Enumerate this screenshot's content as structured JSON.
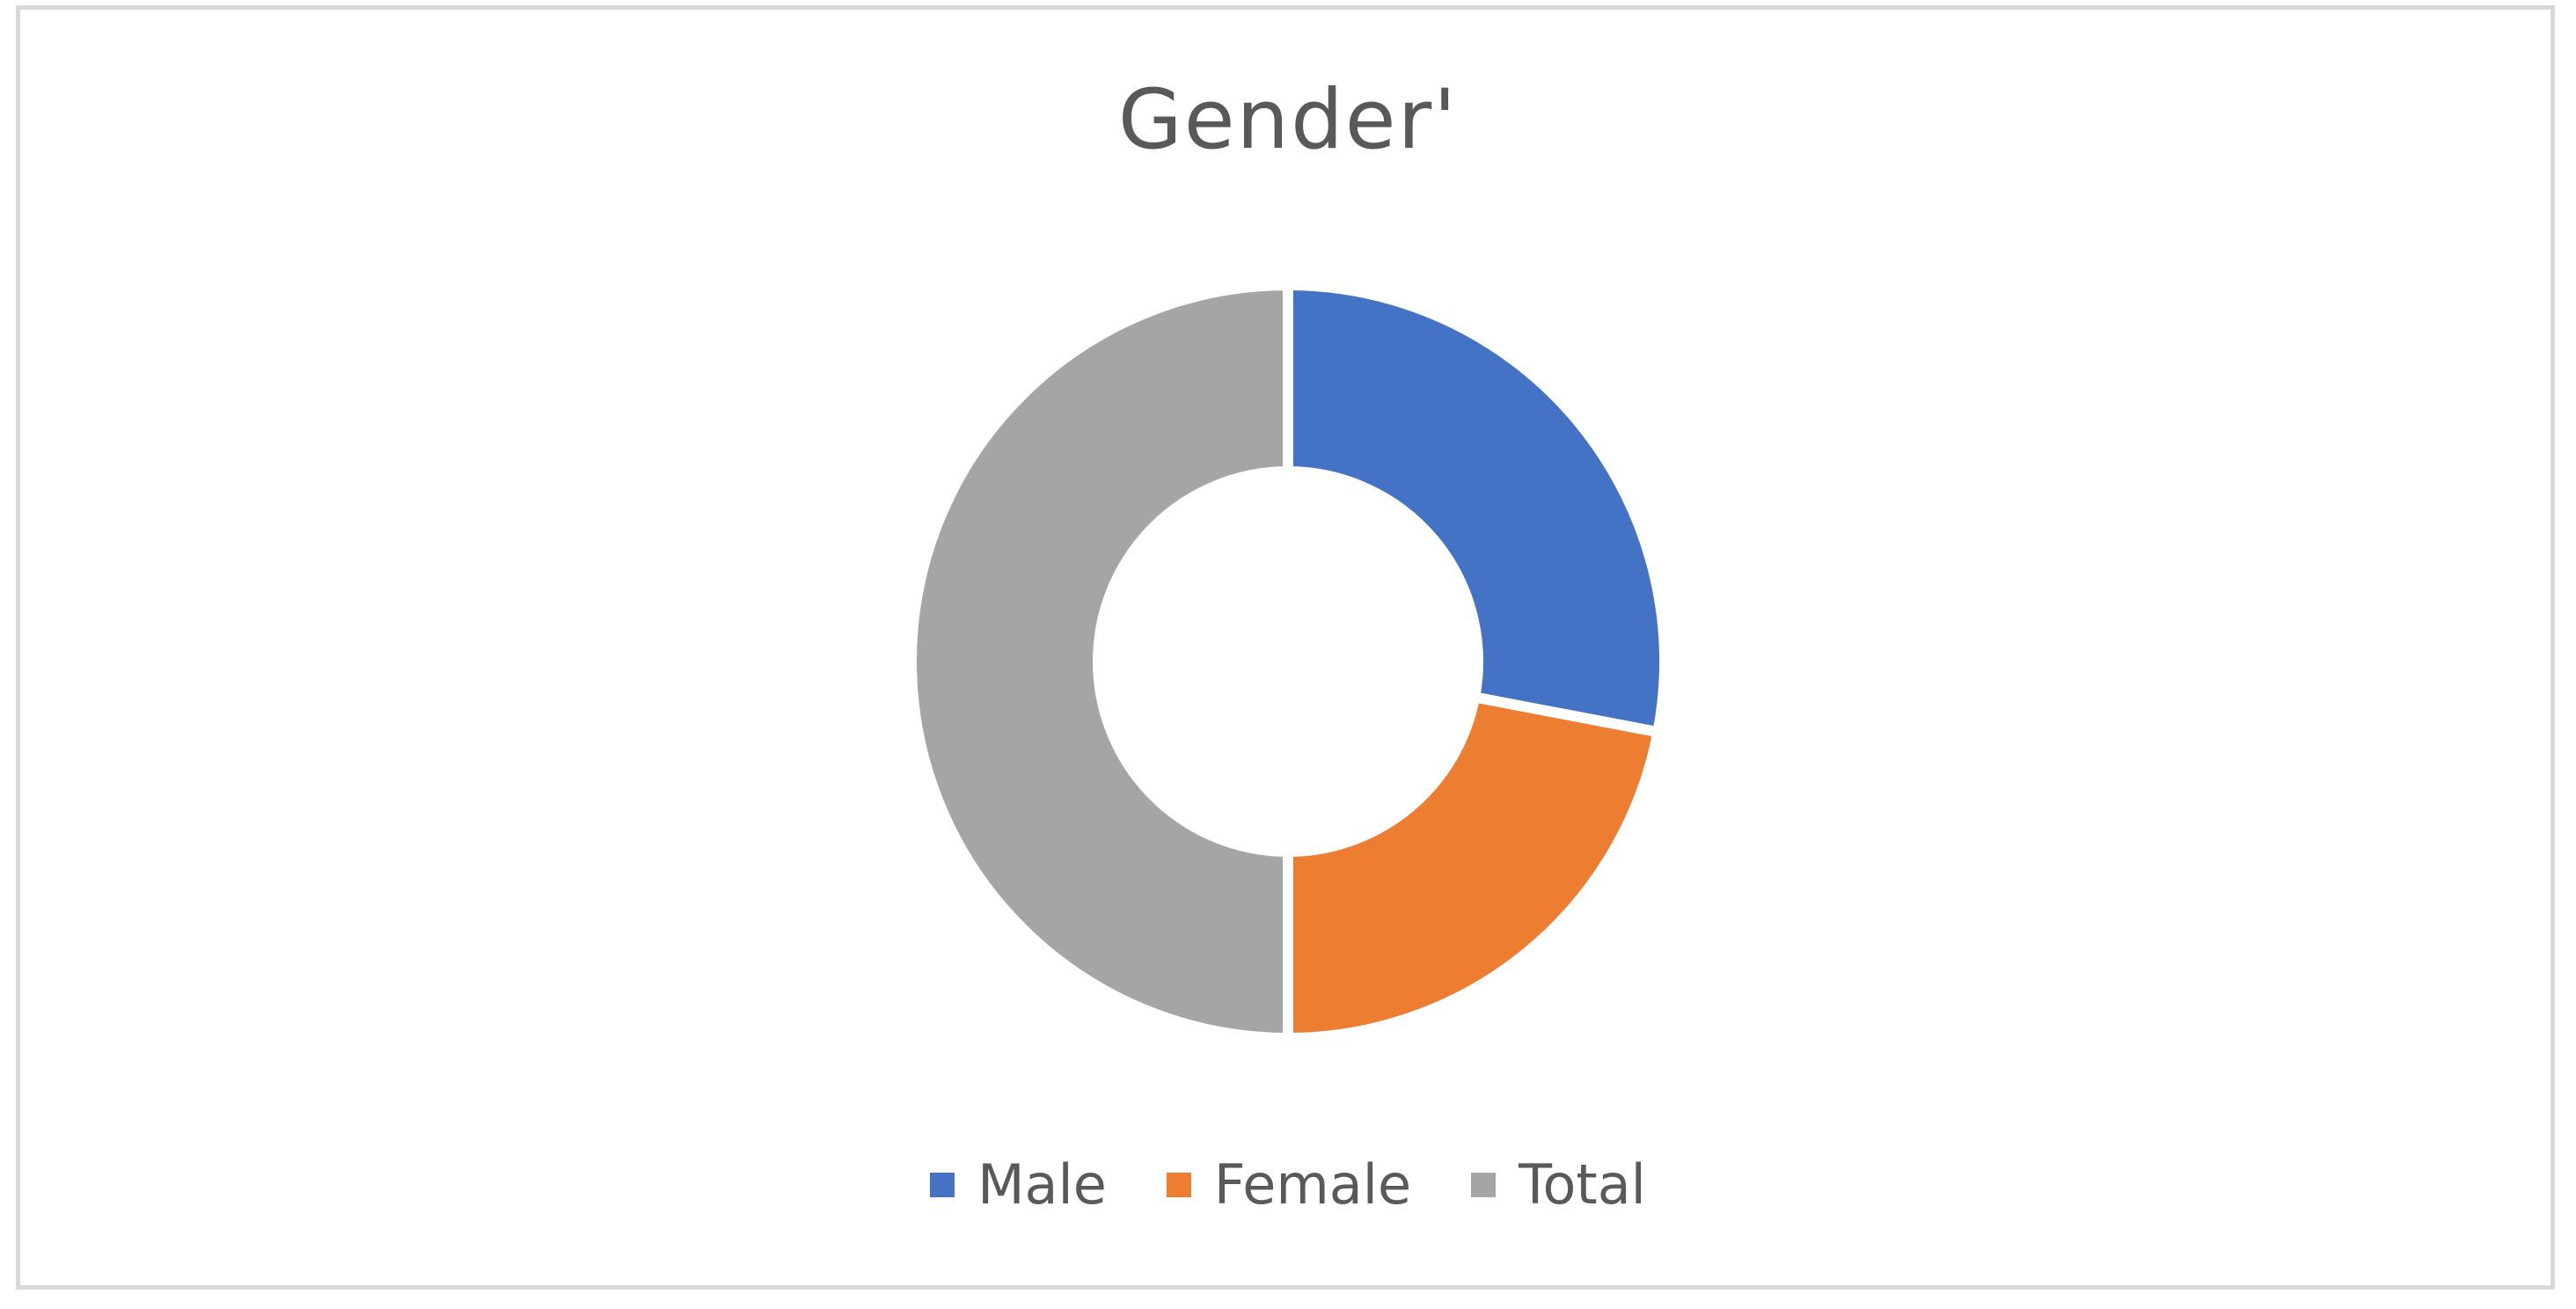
{
  "chart_data": {
    "type": "pie",
    "style": "donut",
    "title": "Gender'",
    "categories": [
      "Male",
      "Female",
      "Total"
    ],
    "values": [
      28,
      22,
      50
    ],
    "colors": [
      "#4472c4",
      "#ed7d31",
      "#a5a5a5"
    ],
    "legend": "bottom",
    "separator_color": "#ffffff"
  }
}
